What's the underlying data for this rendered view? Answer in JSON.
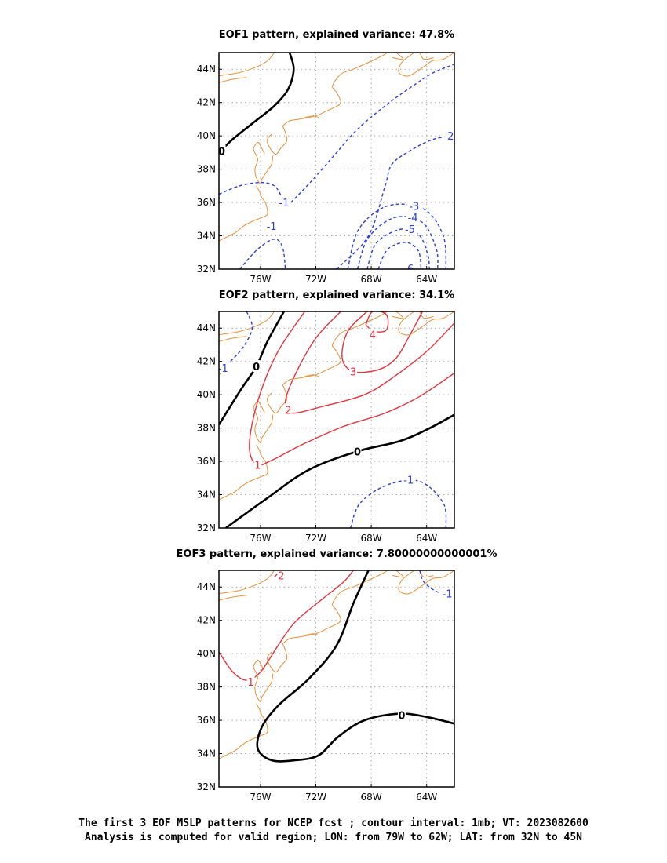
{
  "caption_line1": "The first 3 EOF MSLP patterns for NCEP fcst ; contour interval: 1mb; VT: 2023082600",
  "caption_line2": "Analysis is computed for valid region; LON: from 79W to 62W; LAT: from 32N to 45N",
  "colors": {
    "positive": "#e8323c",
    "negative": "#2a3fe0",
    "zero": "#000000",
    "coast": "#e8903a",
    "grid": "#aaaaaa"
  },
  "chart_data": [
    {
      "type": "contour-map",
      "title": "EOF1 pattern, explained variance: 47.8%",
      "xlim": [
        -79,
        -62
      ],
      "ylim": [
        32,
        45
      ],
      "x_ticks": [
        {
          "v": -76,
          "label": "76W"
        },
        {
          "v": -72,
          "label": "72W"
        },
        {
          "v": -68,
          "label": "68W"
        },
        {
          "v": -64,
          "label": "64W"
        }
      ],
      "y_ticks": [
        {
          "v": 32,
          "label": "32N"
        },
        {
          "v": 34,
          "label": "34N"
        },
        {
          "v": 36,
          "label": "36N"
        },
        {
          "v": 38,
          "label": "38N"
        },
        {
          "v": 40,
          "label": "40N"
        },
        {
          "v": 42,
          "label": "42N"
        },
        {
          "v": 44,
          "label": "44N"
        }
      ],
      "contours": [
        {
          "level": 0,
          "points": [
            [
              -79,
              39
            ],
            [
              -78,
              39.8
            ],
            [
              -76.5,
              40.8
            ],
            [
              -75,
              41.8
            ],
            [
              -74,
              42.8
            ],
            [
              -73.6,
              44
            ],
            [
              -73.9,
              45
            ]
          ],
          "labels": [
            {
              "text": "0",
              "lon": -78.8,
              "lat": 39.1
            }
          ]
        },
        {
          "level": -1,
          "points": [
            [
              -79,
              36.5
            ],
            [
              -77.5,
              37
            ],
            [
              -76,
              37.2
            ],
            [
              -75,
              37
            ],
            [
              -74.5,
              36.4
            ]
          ],
          "labels": [
            {
              "text": "-1",
              "lon": -74.3,
              "lat": 36
            }
          ]
        },
        {
          "level": -1,
          "points": [
            [
              -73.8,
              36
            ],
            [
              -72.3,
              37.3
            ],
            [
              -70.5,
              39
            ],
            [
              -69,
              40.4
            ],
            [
              -67,
              41.8
            ],
            [
              -65,
              43
            ],
            [
              -63.5,
              43.8
            ],
            [
              -62,
              44.3
            ]
          ],
          "labels": []
        },
        {
          "level": -1,
          "points": [
            [
              -77.5,
              32
            ],
            [
              -76.2,
              33.2
            ],
            [
              -75,
              33.8
            ],
            [
              -74.4,
              33.3
            ],
            [
              -74.2,
              32
            ]
          ],
          "labels": [
            {
              "text": "-1",
              "lon": -75.2,
              "lat": 34.6
            }
          ]
        },
        {
          "level": -2,
          "points": [
            [
              -70.5,
              32
            ],
            [
              -68.2,
              34
            ],
            [
              -67,
              37
            ],
            [
              -66.5,
              38.3
            ],
            [
              -65,
              39.2
            ],
            [
              -63.5,
              39.8
            ],
            [
              -62,
              40
            ]
          ],
          "labels": [
            {
              "text": "-2",
              "lon": -62.4,
              "lat": 40
            }
          ]
        },
        {
          "level": -3,
          "points": [
            [
              -69.7,
              32
            ],
            [
              -68.9,
              34.4
            ],
            [
              -66.8,
              35.8
            ],
            [
              -64.2,
              35.6
            ],
            [
              -62.8,
              34
            ],
            [
              -62.6,
              32
            ]
          ],
          "labels": [
            {
              "text": "-3",
              "lon": -64.9,
              "lat": 35.8
            }
          ]
        },
        {
          "level": -4,
          "points": [
            [
              -69,
              32
            ],
            [
              -68.2,
              33.9
            ],
            [
              -66.3,
              35.1
            ],
            [
              -64.3,
              34.8
            ],
            [
              -63.3,
              33.2
            ],
            [
              -63.2,
              32
            ]
          ],
          "labels": [
            {
              "text": "-4",
              "lon": -65,
              "lat": 35.1
            }
          ]
        },
        {
          "level": -5,
          "points": [
            [
              -68.3,
              32
            ],
            [
              -67.6,
              33.6
            ],
            [
              -65.8,
              34.4
            ],
            [
              -64.5,
              34
            ],
            [
              -63.9,
              32.8
            ],
            [
              -63.8,
              32
            ]
          ],
          "labels": [
            {
              "text": "-5",
              "lon": -65.2,
              "lat": 34.4
            }
          ]
        },
        {
          "level": -6,
          "points": [
            [
              -67.5,
              32
            ],
            [
              -66.8,
              33.2
            ],
            [
              -65.5,
              33.6
            ],
            [
              -64.6,
              33.1
            ],
            [
              -64.4,
              32
            ]
          ],
          "labels": [
            {
              "text": "-6",
              "lon": -65.3,
              "lat": 32.05
            }
          ]
        }
      ]
    },
    {
      "type": "contour-map",
      "title": "EOF2 pattern, explained variance: 34.1%",
      "xlim": [
        -79,
        -62
      ],
      "ylim": [
        32,
        45
      ],
      "x_ticks": [
        {
          "v": -76,
          "label": "76W"
        },
        {
          "v": -72,
          "label": "72W"
        },
        {
          "v": -68,
          "label": "68W"
        },
        {
          "v": -64,
          "label": "64W"
        }
      ],
      "y_ticks": [
        {
          "v": 32,
          "label": "32N"
        },
        {
          "v": 34,
          "label": "34N"
        },
        {
          "v": 36,
          "label": "36N"
        },
        {
          "v": 38,
          "label": "38N"
        },
        {
          "v": 40,
          "label": "40N"
        },
        {
          "v": 42,
          "label": "42N"
        },
        {
          "v": 44,
          "label": "44N"
        }
      ],
      "contours": [
        {
          "level": -1,
          "points": [
            [
              -77,
              45
            ],
            [
              -76.6,
              44
            ],
            [
              -77.3,
              42.8
            ],
            [
              -78.4,
              41.8
            ],
            [
              -79,
              41.2
            ]
          ],
          "labels": [
            {
              "text": "-1",
              "lon": -78.7,
              "lat": 41.6
            }
          ]
        },
        {
          "level": 0,
          "points": [
            [
              -79,
              38.2
            ],
            [
              -77.5,
              40.2
            ],
            [
              -76.3,
              41.7
            ],
            [
              -75.5,
              43.2
            ],
            [
              -74.3,
              45
            ]
          ],
          "labels": [
            {
              "text": "0",
              "lon": -76.3,
              "lat": 41.7
            }
          ]
        },
        {
          "level": 1,
          "points": [
            [
              -72.8,
              45
            ],
            [
              -74.8,
              42.5
            ],
            [
              -76.2,
              39.6
            ],
            [
              -76.8,
              37
            ],
            [
              -76.3,
              35.8
            ],
            [
              -75.1,
              36.1
            ],
            [
              -73,
              37
            ],
            [
              -70,
              38.1
            ],
            [
              -67,
              38.9
            ],
            [
              -64.5,
              39.9
            ],
            [
              -62,
              41.3
            ]
          ],
          "labels": [
            {
              "text": "1",
              "lon": -76.2,
              "lat": 35.8
            }
          ]
        },
        {
          "level": 2,
          "points": [
            [
              -70.2,
              45
            ],
            [
              -72,
              43.4
            ],
            [
              -73.5,
              41.2
            ],
            [
              -74.2,
              39.6
            ],
            [
              -73.8,
              38.9
            ],
            [
              -71.5,
              39.3
            ],
            [
              -68.5,
              40
            ],
            [
              -66.5,
              41
            ],
            [
              -64,
              42.6
            ],
            [
              -62,
              44.3
            ]
          ],
          "labels": [
            {
              "text": "2",
              "lon": -74,
              "lat": 39.1
            }
          ]
        },
        {
          "level": 3,
          "points": [
            [
              -68.3,
              45
            ],
            [
              -69.7,
              43.8
            ],
            [
              -70.1,
              42.2
            ],
            [
              -69.3,
              41.4
            ],
            [
              -67.5,
              41.5
            ],
            [
              -66.2,
              42.2
            ],
            [
              -65.2,
              43.6
            ],
            [
              -64.3,
              45
            ]
          ],
          "labels": [
            {
              "text": "3",
              "lon": -69.3,
              "lat": 41.4
            }
          ]
        },
        {
          "level": 4,
          "points": [
            [
              -68.4,
              44.2
            ],
            [
              -67.9,
              45
            ],
            [
              -66.9,
              44.8
            ],
            [
              -66.9,
              43.9
            ],
            [
              -67.8,
              43.8
            ],
            [
              -68.4,
              44.2
            ]
          ],
          "labels": [
            {
              "text": "4",
              "lon": -67.9,
              "lat": 43.6
            }
          ]
        },
        {
          "level": 0,
          "points": [
            [
              -78.5,
              32
            ],
            [
              -75.5,
              33.8
            ],
            [
              -72.5,
              35.5
            ],
            [
              -69,
              36.6
            ],
            [
              -66,
              37.2
            ],
            [
              -64,
              37.9
            ],
            [
              -62,
              38.8
            ]
          ],
          "labels": [
            {
              "text": "0",
              "lon": -69,
              "lat": 36.6
            }
          ]
        },
        {
          "level": -1,
          "points": [
            [
              -69.5,
              32
            ],
            [
              -68.8,
              33.5
            ],
            [
              -66.8,
              34.6
            ],
            [
              -64.5,
              34.8
            ],
            [
              -62.8,
              33.5
            ],
            [
              -62.6,
              32
            ]
          ],
          "labels": [
            {
              "text": "-1",
              "lon": -65.3,
              "lat": 34.9
            }
          ]
        }
      ]
    },
    {
      "type": "contour-map",
      "title": "EOF3 pattern, explained variance: 7.80000000000001%",
      "xlim": [
        -79,
        -62
      ],
      "ylim": [
        32,
        45
      ],
      "x_ticks": [
        {
          "v": -76,
          "label": "76W"
        },
        {
          "v": -72,
          "label": "72W"
        },
        {
          "v": -68,
          "label": "68W"
        },
        {
          "v": -64,
          "label": "64W"
        }
      ],
      "y_ticks": [
        {
          "v": 32,
          "label": "32N"
        },
        {
          "v": 34,
          "label": "34N"
        },
        {
          "v": 36,
          "label": "36N"
        },
        {
          "v": 38,
          "label": "38N"
        },
        {
          "v": 40,
          "label": "40N"
        },
        {
          "v": 42,
          "label": "42N"
        },
        {
          "v": 44,
          "label": "44N"
        }
      ],
      "contours": [
        {
          "level": 1,
          "points": [
            [
              -79,
              40.1
            ],
            [
              -78,
              38.9
            ],
            [
              -77,
              38.4
            ],
            [
              -76,
              38.9
            ],
            [
              -74.8,
              40.4
            ],
            [
              -73.5,
              41.9
            ],
            [
              -71.5,
              43.3
            ],
            [
              -70,
              44.3
            ],
            [
              -69.3,
              45
            ]
          ],
          "labels": [
            {
              "text": "1",
              "lon": -76.7,
              "lat": 38.3
            }
          ]
        },
        {
          "level": 2,
          "points": [
            [
              -75,
              44.6
            ],
            [
              -74.5,
              45
            ]
          ],
          "labels": [
            {
              "text": "2",
              "lon": -74.5,
              "lat": 44.7
            }
          ]
        },
        {
          "level": 0,
          "points": [
            [
              -68.2,
              45
            ],
            [
              -69.3,
              43
            ],
            [
              -70.5,
              40.5
            ],
            [
              -72.5,
              38.5
            ],
            [
              -74.7,
              36.9
            ],
            [
              -75.9,
              35.6
            ],
            [
              -76.2,
              34.3
            ],
            [
              -75.2,
              33.6
            ],
            [
              -73.5,
              33.6
            ],
            [
              -71.8,
              33.9
            ],
            [
              -70.4,
              35
            ],
            [
              -68.5,
              36
            ],
            [
              -66,
              36.4
            ],
            [
              -64,
              36.2
            ],
            [
              -62,
              35.8
            ]
          ],
          "labels": [
            {
              "text": "0",
              "lon": -65.8,
              "lat": 36.3
            }
          ]
        },
        {
          "level": -1,
          "points": [
            [
              -64.5,
              45
            ],
            [
              -64.2,
              44.3
            ],
            [
              -63.2,
              43.7
            ],
            [
              -62,
              43.6
            ]
          ],
          "labels": [
            {
              "text": "-1",
              "lon": -62.5,
              "lat": 43.6
            }
          ]
        }
      ]
    }
  ]
}
